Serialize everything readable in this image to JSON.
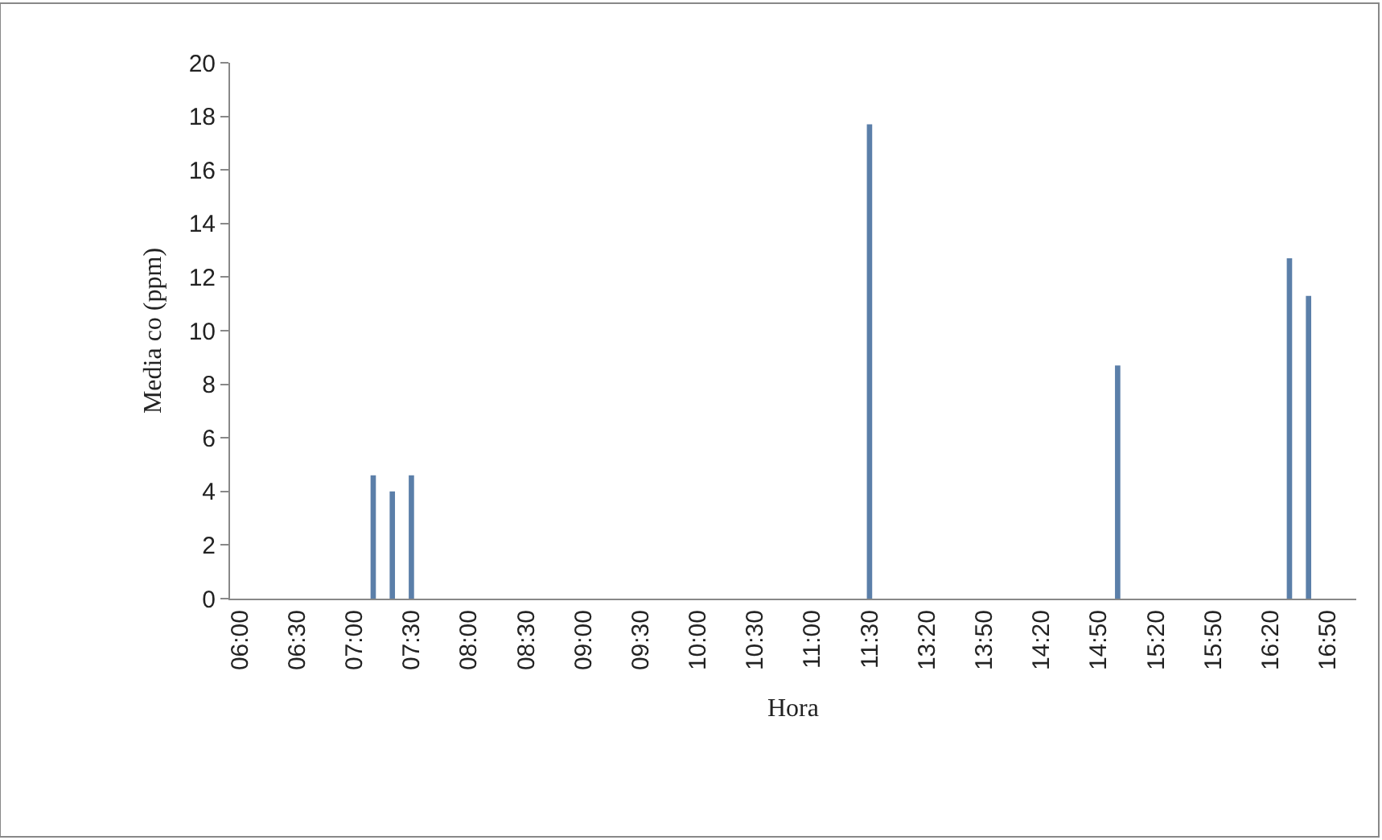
{
  "chart_data": {
    "type": "bar",
    "xlabel": "Hora",
    "ylabel": "Media co (ppm)",
    "categories": [
      "06:00",
      null,
      null,
      "06:30",
      null,
      null,
      "07:00",
      null,
      null,
      "07:30",
      null,
      null,
      "08:00",
      null,
      null,
      "08:30",
      null,
      null,
      "09:00",
      null,
      null,
      "09:30",
      null,
      null,
      "10:00",
      null,
      null,
      "10:30",
      null,
      null,
      "11:00",
      null,
      null,
      "11:30",
      null,
      null,
      "13:20",
      null,
      null,
      "13:50",
      null,
      null,
      "14:20",
      null,
      null,
      "14:50",
      null,
      null,
      "15:20",
      null,
      null,
      "15:50",
      null,
      null,
      "16:20",
      null,
      null,
      "16:50",
      null
    ],
    "values": [
      null,
      null,
      null,
      null,
      null,
      null,
      null,
      4.6,
      4.0,
      4.6,
      null,
      null,
      null,
      null,
      null,
      null,
      null,
      null,
      null,
      null,
      null,
      null,
      null,
      null,
      null,
      null,
      null,
      null,
      null,
      null,
      null,
      null,
      null,
      17.7,
      null,
      null,
      null,
      null,
      null,
      null,
      null,
      null,
      null,
      null,
      null,
      null,
      8.7,
      null,
      null,
      null,
      null,
      null,
      null,
      null,
      null,
      12.7,
      11.3,
      null,
      null
    ],
    "color": "#5b7fa9",
    "ylim": [
      0,
      20
    ],
    "yticks": [
      0,
      2,
      4,
      6,
      8,
      10,
      12,
      14,
      16,
      18,
      20
    ]
  }
}
